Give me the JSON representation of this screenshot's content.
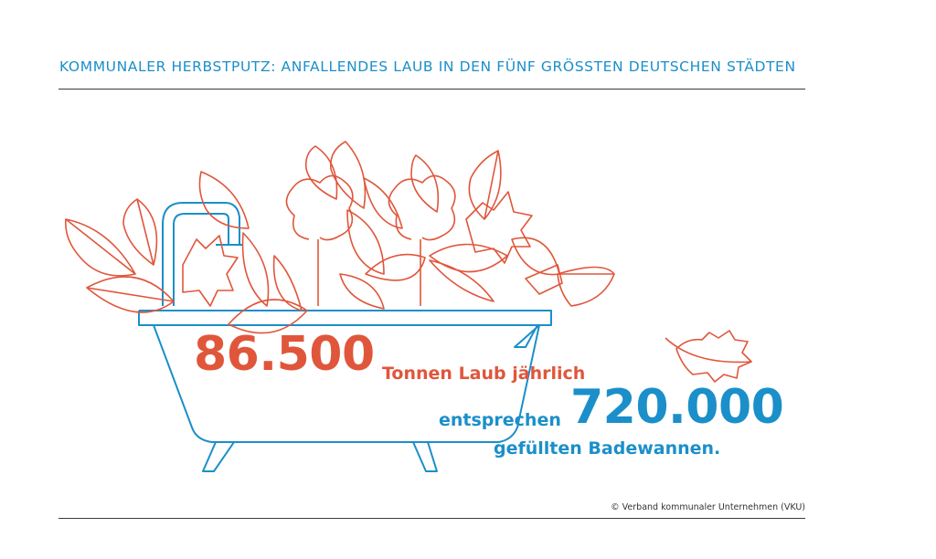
{
  "title": "KOMMUNALER HERBSTPUTZ: ANFALLENDES LAUB IN DEN FÜNF GRÖSSTEN DEUTSCHEN STÄDTEN",
  "stat": {
    "value": "86.500",
    "unit": "Tonnen Laub jährlich"
  },
  "equivalent": {
    "lead": "entsprechen",
    "value": "720.000",
    "unit": "gefüllten Badewannen."
  },
  "copyright": "© Verband kommunaler Unternehmen (VKU)",
  "colors": {
    "blue": "#1b8fc9",
    "orange": "#e0563b",
    "rule": "#3a3a3a"
  },
  "icons": [
    "bathtub-icon",
    "faucet-icon",
    "leaf-icon",
    "falling-leaf-icon"
  ]
}
